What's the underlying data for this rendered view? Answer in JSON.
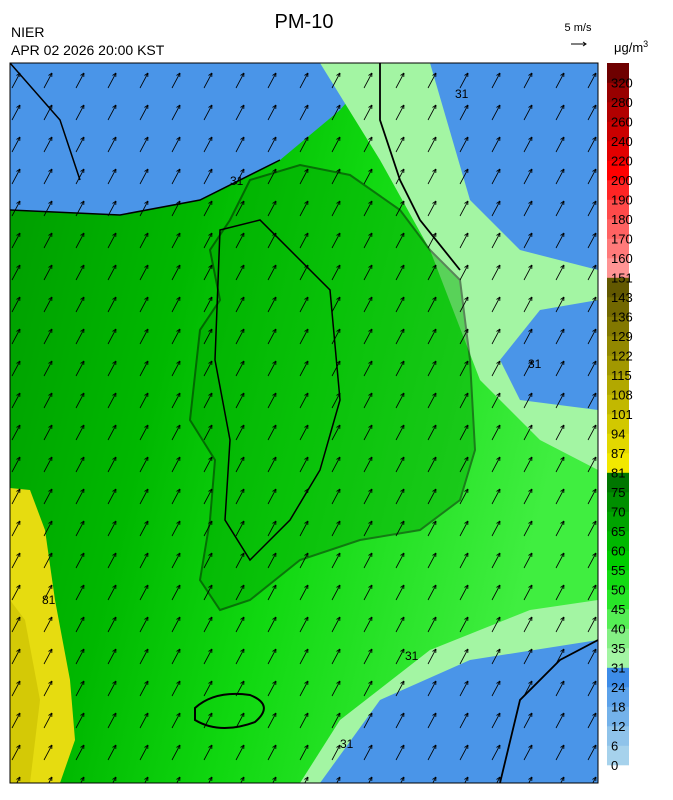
{
  "header": {
    "title": "PM-10",
    "agency": "NIER",
    "timestamp": "APR 02 2026 20:00 KST",
    "wind_scale": "5 m/s",
    "unit": "μg/m",
    "unit_exponent": "3"
  },
  "contour_labels": [
    "31",
    "31",
    "31",
    "31",
    "31",
    "81"
  ],
  "colorbar": {
    "levels": [
      0,
      6,
      12,
      18,
      24,
      31,
      35,
      40,
      45,
      50,
      55,
      60,
      65,
      70,
      75,
      81,
      87,
      94,
      101,
      108,
      115,
      122,
      129,
      136,
      143,
      151,
      160,
      170,
      180,
      190,
      200,
      220,
      240,
      260,
      280,
      320
    ],
    "colors": [
      "#a6d2ec",
      "#8fc3ea",
      "#74b2ea",
      "#5ca2ea",
      "#3d8ce8",
      "#a3f5a3",
      "#84f084",
      "#55ee55",
      "#28e628",
      "#12da12",
      "#00cc00",
      "#00b800",
      "#00a400",
      "#008f00",
      "#007600",
      "#f2e800",
      "#e2d800",
      "#d2c800",
      "#c2b800",
      "#b2a800",
      "#a29800",
      "#928800",
      "#827800",
      "#726800",
      "#625800",
      "#ff9494",
      "#ff7a7a",
      "#ff6262",
      "#ff4a4a",
      "#ff2424",
      "#ff0000",
      "#e20000",
      "#ca0000",
      "#b20000",
      "#980000",
      "#6e0000"
    ]
  }
}
